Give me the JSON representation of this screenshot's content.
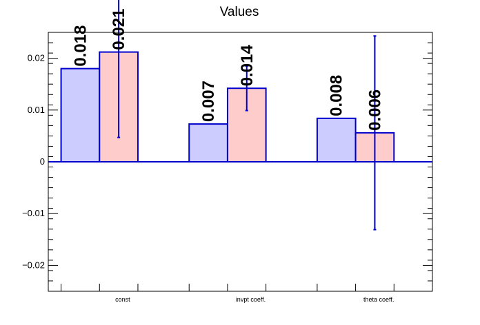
{
  "chart_data": {
    "type": "bar",
    "title": "Values",
    "xlabel": "",
    "ylabel": "",
    "categories": [
      "const",
      "invpt coeff.",
      "theta coeff."
    ],
    "ylim": [
      -0.025,
      0.025
    ],
    "yticks": [
      -0.02,
      -0.01,
      0,
      0.01,
      0.02
    ],
    "ytick_labels": [
      "−0.02",
      "−0.01",
      "0",
      "0.01",
      "0.02"
    ],
    "grid": false,
    "series": [
      {
        "color": "#ccccff",
        "edge_color": "#0000cc",
        "values": [
          0.018,
          0.0073,
          0.0084
        ],
        "labels": [
          "0.018",
          "0.007",
          "0.008"
        ]
      },
      {
        "color": "#ffcccc",
        "edge_color": "#0000cc",
        "values": [
          0.0212,
          0.0142,
          0.0056
        ],
        "labels": [
          "0.021",
          "0.014",
          "0.006"
        ],
        "errors": [
          0.0165,
          0.0043,
          0.0187
        ]
      }
    ]
  }
}
